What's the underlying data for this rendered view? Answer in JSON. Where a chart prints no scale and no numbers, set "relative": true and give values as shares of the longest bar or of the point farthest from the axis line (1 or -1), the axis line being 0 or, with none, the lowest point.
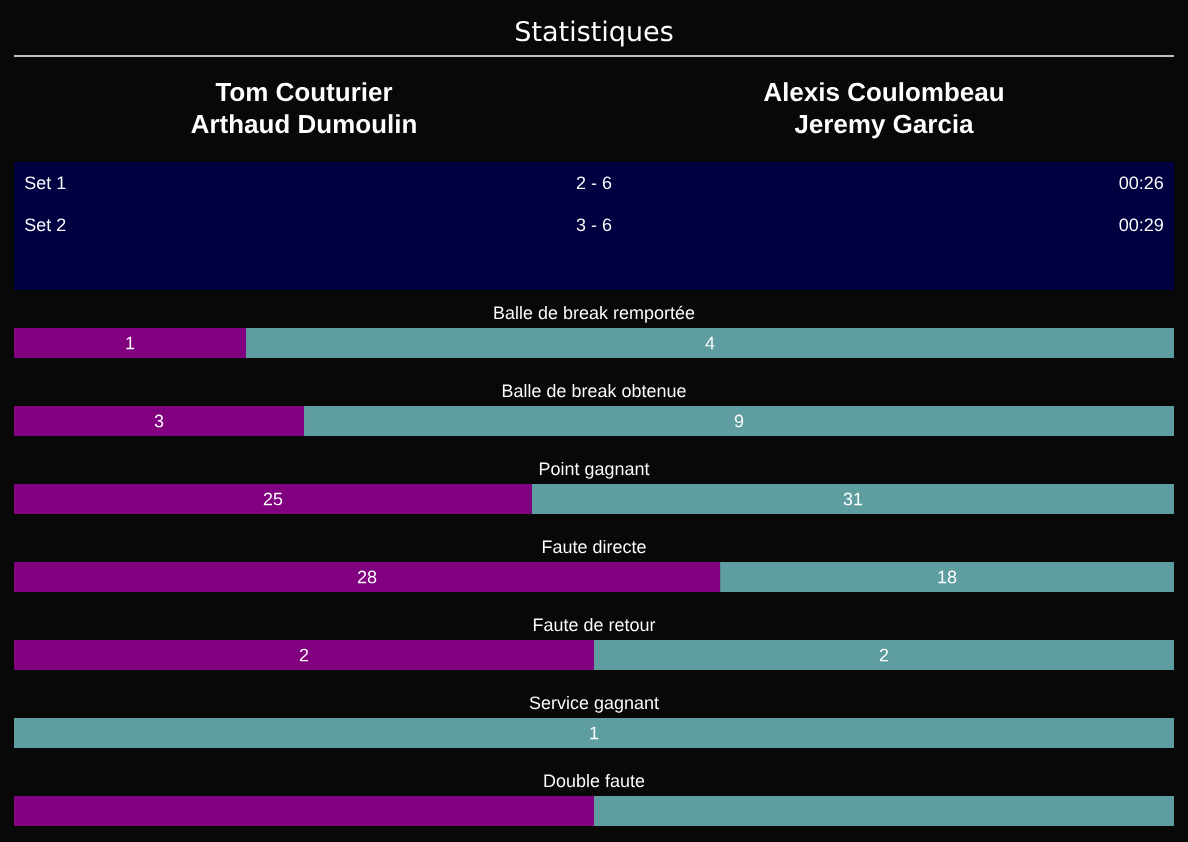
{
  "chart_data": [
    {
      "type": "other",
      "title": "Statistiques",
      "annotations": [
        "Tom Couturier",
        "Arthaud Dumoulin",
        "Alexis Coulombeau",
        "Jeremy Garcia",
        "Set 1",
        "2 - 6",
        "00:26",
        "Set 2",
        "3 - 6",
        "00:29"
      ]
    },
    {
      "type": "bar",
      "orientation": "horizontal",
      "stacked": true,
      "tick_labels": "y",
      "categories": [
        "Balle de break remportée"
      ],
      "series": [
        {
          "color": "#800080",
          "values": [
            1
          ],
          "value_labels": [
            "1"
          ]
        },
        {
          "color": "#5f9ea0",
          "values": [
            4
          ],
          "value_labels": [
            "4"
          ]
        }
      ]
    },
    {
      "type": "bar",
      "orientation": "horizontal",
      "stacked": true,
      "tick_labels": "y",
      "categories": [
        "Balle de break obtenue"
      ],
      "series": [
        {
          "color": "#800080",
          "values": [
            3
          ],
          "value_labels": [
            "3"
          ]
        },
        {
          "color": "#5f9ea0",
          "values": [
            9
          ],
          "value_labels": [
            "9"
          ]
        }
      ]
    },
    {
      "type": "bar",
      "orientation": "horizontal",
      "stacked": true,
      "tick_labels": "y",
      "categories": [
        "Point gagnant"
      ],
      "series": [
        {
          "color": "#800080",
          "values": [
            25
          ],
          "value_labels": [
            "25"
          ]
        },
        {
          "color": "#5f9ea0",
          "values": [
            31
          ],
          "value_labels": [
            "31"
          ]
        }
      ]
    },
    {
      "type": "bar",
      "orientation": "horizontal",
      "stacked": true,
      "tick_labels": "y",
      "categories": [
        "Faute directe"
      ],
      "series": [
        {
          "color": "#800080",
          "values": [
            28
          ],
          "value_labels": [
            "28"
          ]
        },
        {
          "color": "#5f9ea0",
          "values": [
            18
          ],
          "value_labels": [
            "18"
          ]
        }
      ]
    },
    {
      "type": "bar",
      "orientation": "horizontal",
      "stacked": true,
      "tick_labels": "y",
      "categories": [
        "Faute de retour"
      ],
      "series": [
        {
          "color": "#800080",
          "values": [
            2
          ],
          "value_labels": [
            "2"
          ]
        },
        {
          "color": "#5f9ea0",
          "values": [
            2
          ],
          "value_labels": [
            "2"
          ]
        }
      ]
    },
    {
      "type": "bar",
      "orientation": "horizontal",
      "stacked": true,
      "tick_labels": "y",
      "categories": [
        "Service gagnant"
      ],
      "series": [
        {
          "color": "#800080",
          "values": [
            0
          ],
          "value_labels": [
            null
          ]
        },
        {
          "color": "#5f9ea0",
          "values": [
            1
          ],
          "value_labels": [
            "1"
          ]
        }
      ]
    },
    {
      "type": "bar",
      "orientation": "horizontal",
      "stacked": true,
      "relative": true,
      "categories": [
        "Double faute"
      ],
      "series": [
        {
          "color": "#800080",
          "values": [
            0.5
          ]
        },
        {
          "color": "#5f9ea0",
          "values": [
            0.5
          ]
        }
      ]
    }
  ]
}
